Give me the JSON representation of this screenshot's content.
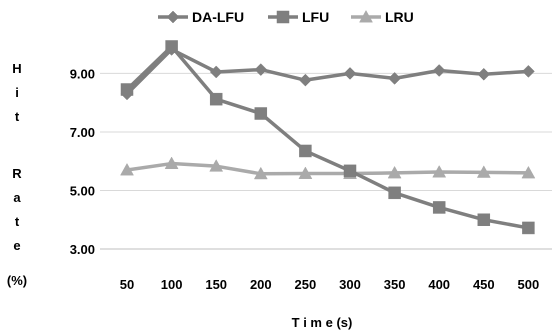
{
  "chart_data": {
    "type": "line",
    "title": "",
    "xlabel": "T i m e (s)",
    "ylabel_lines": [
      "H",
      "i",
      "t",
      "",
      "R",
      "a",
      "t",
      "e",
      "(%)"
    ],
    "x": [
      50,
      100,
      150,
      200,
      250,
      300,
      350,
      400,
      450,
      500
    ],
    "x_tick_labels": [
      "50",
      "100",
      "150",
      "200",
      "250",
      "300",
      "350",
      "400",
      "450",
      "500"
    ],
    "y_tick_labels": [
      "3.00",
      "5.00",
      "7.00",
      "9.00"
    ],
    "y_ticks": [
      3.0,
      5.0,
      7.0,
      9.0
    ],
    "ylim": [
      3.0,
      9.8
    ],
    "grid": "horizontal",
    "legend_position": "top",
    "series": [
      {
        "name": "DA-LFU",
        "color": "#7f7f7f",
        "marker": "diamond",
        "values": [
          8.3,
          9.82,
          9.05,
          9.13,
          8.77,
          9.0,
          8.83,
          9.1,
          8.97,
          9.07
        ]
      },
      {
        "name": "LFU",
        "color": "#7f7f7f",
        "marker": "square",
        "values": [
          8.45,
          9.92,
          8.12,
          7.63,
          6.35,
          5.67,
          4.92,
          4.42,
          4.0,
          3.72
        ]
      },
      {
        "name": "LRU",
        "color": "#aaaaaa",
        "marker": "triangle",
        "values": [
          5.7,
          5.92,
          5.83,
          5.57,
          5.58,
          5.58,
          5.6,
          5.63,
          5.62,
          5.6
        ]
      }
    ]
  }
}
